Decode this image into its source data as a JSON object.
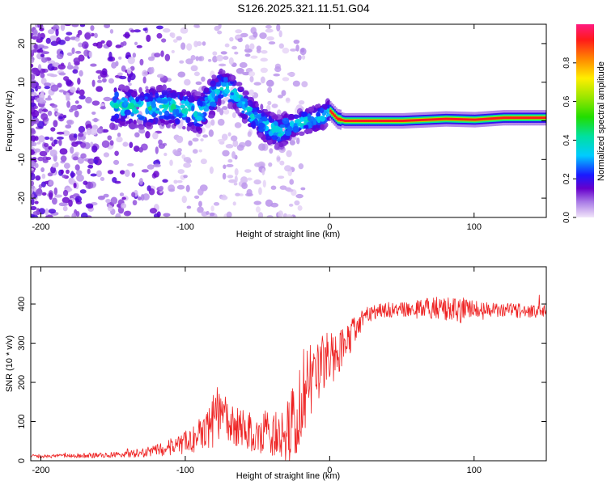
{
  "title": "S126.2025.321.11.51.G04",
  "chart_data": [
    {
      "type": "heatmap",
      "name": "spectrogram",
      "xlabel": "Height of straight line (km)",
      "ylabel": "Frequency (Hz)",
      "xlim": [
        -207,
        150
      ],
      "ylim": [
        -25,
        25
      ],
      "x_ticks": [
        -200,
        -100,
        0,
        100
      ],
      "y_ticks": [
        -20,
        -10,
        0,
        10,
        20
      ],
      "x_tick_labels": [
        "-200",
        "-100",
        "0",
        "100"
      ],
      "y_tick_labels": [
        "-20",
        "-10",
        "0",
        "10",
        "20"
      ],
      "colorbar": {
        "label": "Normalized spectral amplitude",
        "range": [
          0,
          1
        ],
        "ticks": [
          0.0,
          0.2,
          0.4,
          0.6,
          0.8
        ],
        "tick_labels": [
          "0.0",
          "0.2",
          "0.4",
          "0.6",
          "0.8"
        ]
      },
      "dominant_frequency_track": [
        {
          "x": -145,
          "y": 4
        },
        {
          "x": -130,
          "y": 3
        },
        {
          "x": -115,
          "y": 4
        },
        {
          "x": -100,
          "y": 3
        },
        {
          "x": -90,
          "y": 2
        },
        {
          "x": -75,
          "y": 9
        },
        {
          "x": -65,
          "y": 7
        },
        {
          "x": -55,
          "y": 2
        },
        {
          "x": -45,
          "y": -1
        },
        {
          "x": -35,
          "y": -3
        },
        {
          "x": -25,
          "y": -1
        },
        {
          "x": -15,
          "y": 0
        },
        {
          "x": -5,
          "y": 1
        },
        {
          "x": 0,
          "y": 2.5
        },
        {
          "x": 5,
          "y": 0.5
        },
        {
          "x": 10,
          "y": 0
        },
        {
          "x": 50,
          "y": 0
        },
        {
          "x": 80,
          "y": 0.5
        },
        {
          "x": 100,
          "y": 0.3
        },
        {
          "x": 120,
          "y": 0.8
        },
        {
          "x": 150,
          "y": 0.8
        }
      ]
    },
    {
      "type": "line",
      "name": "snr",
      "xlabel": "Height of straight line (km)",
      "ylabel": "SNR (10 * v/v)",
      "xlim": [
        -207,
        150
      ],
      "ylim": [
        0,
        495
      ],
      "x_ticks": [
        -200,
        -100,
        0,
        100
      ],
      "y_ticks": [
        0,
        100,
        200,
        300,
        400
      ],
      "x_tick_labels": [
        "-200",
        "-100",
        "0",
        "100"
      ],
      "y_tick_labels": [
        "0",
        "100",
        "200",
        "300",
        "400"
      ],
      "color": "#ee2222",
      "series": [
        {
          "name": "SNR",
          "x": [
            -207,
            -190,
            -170,
            -150,
            -130,
            -115,
            -105,
            -95,
            -85,
            -78,
            -70,
            -60,
            -50,
            -42,
            -35,
            -30,
            -25,
            -20,
            -15,
            -10,
            -5,
            0,
            5,
            10,
            15,
            20,
            25,
            30,
            40,
            50,
            60,
            70,
            80,
            90,
            100,
            110,
            120,
            130,
            140,
            150
          ],
          "values": [
            12,
            12,
            13,
            15,
            20,
            30,
            40,
            55,
            85,
            120,
            100,
            80,
            75,
            70,
            65,
            70,
            110,
            160,
            210,
            240,
            260,
            255,
            265,
            290,
            320,
            350,
            370,
            380,
            385,
            385,
            388,
            390,
            388,
            385,
            388,
            385,
            385,
            383,
            383,
            383
          ],
          "noise_amplitude": [
            5,
            5,
            6,
            7,
            12,
            18,
            25,
            35,
            55,
            70,
            55,
            50,
            55,
            60,
            60,
            80,
            110,
            120,
            110,
            100,
            90,
            80,
            60,
            50,
            40,
            30,
            25,
            20,
            20,
            20,
            20,
            30,
            30,
            35,
            20,
            18,
            18,
            18,
            18,
            18
          ]
        }
      ]
    }
  ]
}
